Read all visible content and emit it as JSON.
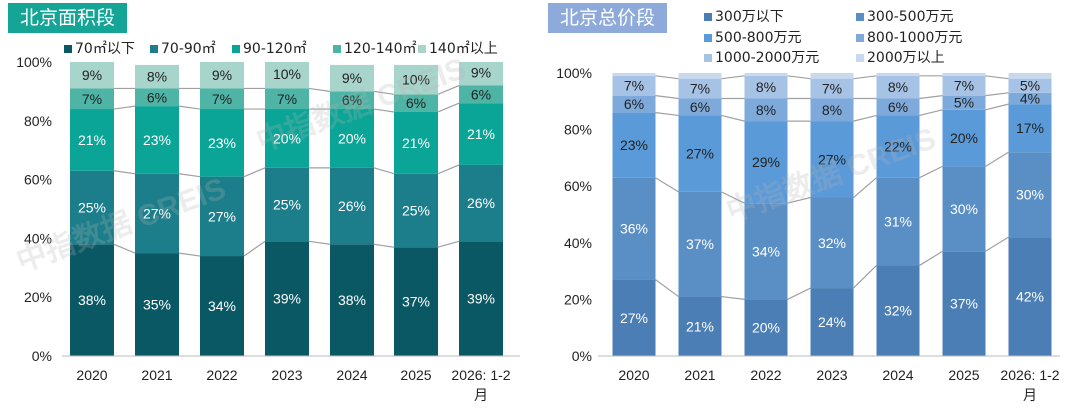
{
  "chart_data": [
    {
      "type": "bar",
      "stacked": true,
      "title": "北京面积段",
      "title_color": "#15a596",
      "categories": [
        "2020",
        "2021",
        "2022",
        "2023",
        "2024",
        "2025",
        "2026: 1-2月"
      ],
      "ylim": [
        0,
        100
      ],
      "yticks": [
        "0%",
        "20%",
        "40%",
        "60%",
        "80%",
        "100%"
      ],
      "legend_position": "top",
      "series": [
        {
          "name": "70㎡以下",
          "color": "#0b5865",
          "values": [
            38,
            35,
            34,
            39,
            38,
            37,
            39
          ]
        },
        {
          "name": "70-90㎡",
          "color": "#1b7e8a",
          "values": [
            25,
            27,
            27,
            25,
            26,
            25,
            26
          ]
        },
        {
          "name": "90-120㎡",
          "color": "#0aa596",
          "values": [
            21,
            23,
            23,
            20,
            20,
            21,
            21
          ]
        },
        {
          "name": "120-140㎡",
          "color": "#4eb4a6",
          "values": [
            7,
            6,
            7,
            7,
            6,
            6,
            6
          ]
        },
        {
          "name": "140㎡以上",
          "color": "#a7d5cb",
          "values": [
            9,
            8,
            9,
            10,
            9,
            10,
            9
          ]
        }
      ]
    },
    {
      "type": "bar",
      "stacked": true,
      "title": "北京总价段",
      "title_color": "#8eaadb",
      "categories": [
        "2020",
        "2021",
        "2022",
        "2023",
        "2024",
        "2025",
        "2026: 1-2月"
      ],
      "ylim": [
        0,
        100
      ],
      "yticks": [
        "0%",
        "20%",
        "40%",
        "60%",
        "80%",
        "100%"
      ],
      "legend_position": "top",
      "series": [
        {
          "name": "300万以下",
          "color": "#4a7eb4",
          "values": [
            27,
            21,
            20,
            24,
            32,
            37,
            42
          ]
        },
        {
          "name": "300-500万元",
          "color": "#5a8fc6",
          "values": [
            36,
            37,
            34,
            32,
            31,
            30,
            30
          ]
        },
        {
          "name": "500-800万元",
          "color": "#5b9ad8",
          "values": [
            23,
            27,
            29,
            27,
            22,
            20,
            17
          ]
        },
        {
          "name": "800-1000万元",
          "color": "#7eaadb",
          "values": [
            6,
            6,
            8,
            8,
            6,
            5,
            4
          ]
        },
        {
          "name": "1000-2000万元",
          "color": "#a6c3e6",
          "values": [
            7,
            7,
            8,
            7,
            8,
            7,
            5
          ]
        },
        {
          "name": "2000万以上",
          "color": "#c8d8ee",
          "values": [
            1,
            2,
            1,
            2,
            1,
            1,
            2
          ]
        }
      ]
    }
  ],
  "watermark": "中指数据 CREIS"
}
